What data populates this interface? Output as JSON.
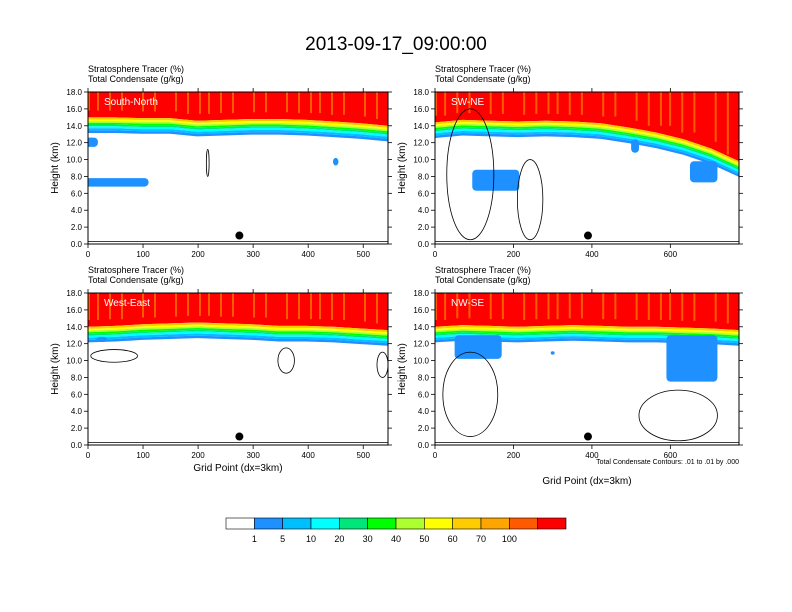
{
  "title": "2013-09-17_09:00:00",
  "chart_data": {
    "type": "heatmap",
    "title": "2013-09-17_09:00:00",
    "variables": {
      "fill": "Stratosphere Tracer",
      "fill_units": "(%)",
      "contour": "Total Condensate",
      "contour_units": "(g/kg)"
    },
    "contour_note": "Total Condensate Contours: .01 to .01 by .000",
    "ylabel": "Height (km)",
    "xlabel": "Grid Point (dx=3km)",
    "ylim": [
      0,
      18
    ],
    "yticks": [
      "0.0",
      "2.0",
      "4.0",
      "6.0",
      "8.0",
      "10.0",
      "12.0",
      "14.0",
      "16.0",
      "18.0"
    ],
    "yticks_values": [
      0,
      2,
      4,
      6,
      8,
      10,
      12,
      14,
      16,
      18
    ],
    "colorbar": {
      "labels": [
        "1",
        "5",
        "10",
        "20",
        "30",
        "40",
        "50",
        "60",
        "70",
        "100"
      ],
      "colors": [
        "#ffffff",
        "#1e90ff",
        "#00bfff",
        "#00ffff",
        "#00e67a",
        "#00ff00",
        "#adff2f",
        "#ffff00",
        "#ffcc00",
        "#ffa500",
        "#ff5a00",
        "#ff0000"
      ]
    },
    "panels": [
      {
        "name": "South-North",
        "xlim": [
          0,
          545
        ],
        "xticks": [
          0,
          100,
          200,
          300,
          400,
          500
        ],
        "marker": [
          275,
          1.0
        ],
        "tropopause_km": [
          15.0,
          15.0,
          14.9,
          14.9,
          14.6,
          14.7,
          14.8,
          14.8,
          14.7,
          14.5,
          14.3,
          14.0
        ],
        "blue_patches": [
          {
            "x": [
              -5,
              110
            ],
            "y": [
              6.8,
              7.8
            ]
          },
          {
            "x": [
              -5,
              18
            ],
            "y": [
              11.5,
              12.6
            ]
          },
          {
            "x": [
              445,
              455
            ],
            "y": [
              9.3,
              10.2
            ]
          }
        ],
        "contours": [
          {
            "x": [
              215,
              220
            ],
            "y": [
              8.0,
              11.2
            ]
          }
        ]
      },
      {
        "name": "SW-NE",
        "xlim": [
          0,
          775
        ],
        "xticks": [
          0,
          200,
          400,
          600
        ],
        "marker": [
          390,
          1.0
        ],
        "tropopause_km": [
          14.4,
          14.7,
          14.6,
          14.5,
          14.6,
          14.5,
          14.3,
          13.8,
          13.2,
          12.4,
          11.3,
          9.8
        ],
        "blue_patches": [
          {
            "x": [
              95,
              215
            ],
            "y": [
              6.3,
              8.8
            ]
          },
          {
            "x": [
              500,
              520
            ],
            "y": [
              10.8,
              12.4
            ]
          },
          {
            "x": [
              650,
              720
            ],
            "y": [
              7.3,
              9.8
            ]
          }
        ],
        "contours": [
          {
            "x": [
              30,
              150
            ],
            "y": [
              0.5,
              16.0
            ]
          },
          {
            "x": [
              210,
              275
            ],
            "y": [
              0.5,
              10.0
            ]
          }
        ]
      },
      {
        "name": "West-East",
        "xlim": [
          0,
          545
        ],
        "xticks": [
          0,
          100,
          200,
          300,
          400,
          500
        ],
        "marker": [
          275,
          1.0
        ],
        "tropopause_km": [
          14.0,
          14.1,
          14.3,
          14.4,
          14.5,
          14.4,
          14.3,
          14.1,
          14.1,
          14.0,
          13.8,
          13.6
        ],
        "blue_patches": [
          {
            "x": [
              15,
              35
            ],
            "y": [
              12.2,
              12.8
            ]
          }
        ],
        "contours": [
          {
            "x": [
              5,
              90
            ],
            "y": [
              9.8,
              11.3
            ]
          },
          {
            "x": [
              345,
              375
            ],
            "y": [
              8.5,
              11.5
            ]
          },
          {
            "x": [
              525,
              545
            ],
            "y": [
              8.0,
              11.0
            ]
          }
        ]
      },
      {
        "name": "NW-SE",
        "xlim": [
          0,
          775
        ],
        "xticks": [
          0,
          200,
          400,
          600
        ],
        "marker": [
          390,
          1.0
        ],
        "tropopause_km": [
          14.0,
          14.2,
          14.1,
          14.0,
          14.1,
          14.2,
          14.1,
          14.0,
          14.0,
          13.9,
          13.8,
          13.6
        ],
        "blue_patches": [
          {
            "x": [
              50,
              170
            ],
            "y": [
              10.2,
              13.0
            ]
          },
          {
            "x": [
              590,
              720
            ],
            "y": [
              7.5,
              13.0
            ]
          },
          {
            "x": [
              295,
              305
            ],
            "y": [
              10.7,
              11.1
            ]
          }
        ],
        "contours": [
          {
            "x": [
              20,
              160
            ],
            "y": [
              1.0,
              11.0
            ]
          },
          {
            "x": [
              520,
              720
            ],
            "y": [
              0.5,
              6.5
            ]
          }
        ]
      }
    ]
  }
}
